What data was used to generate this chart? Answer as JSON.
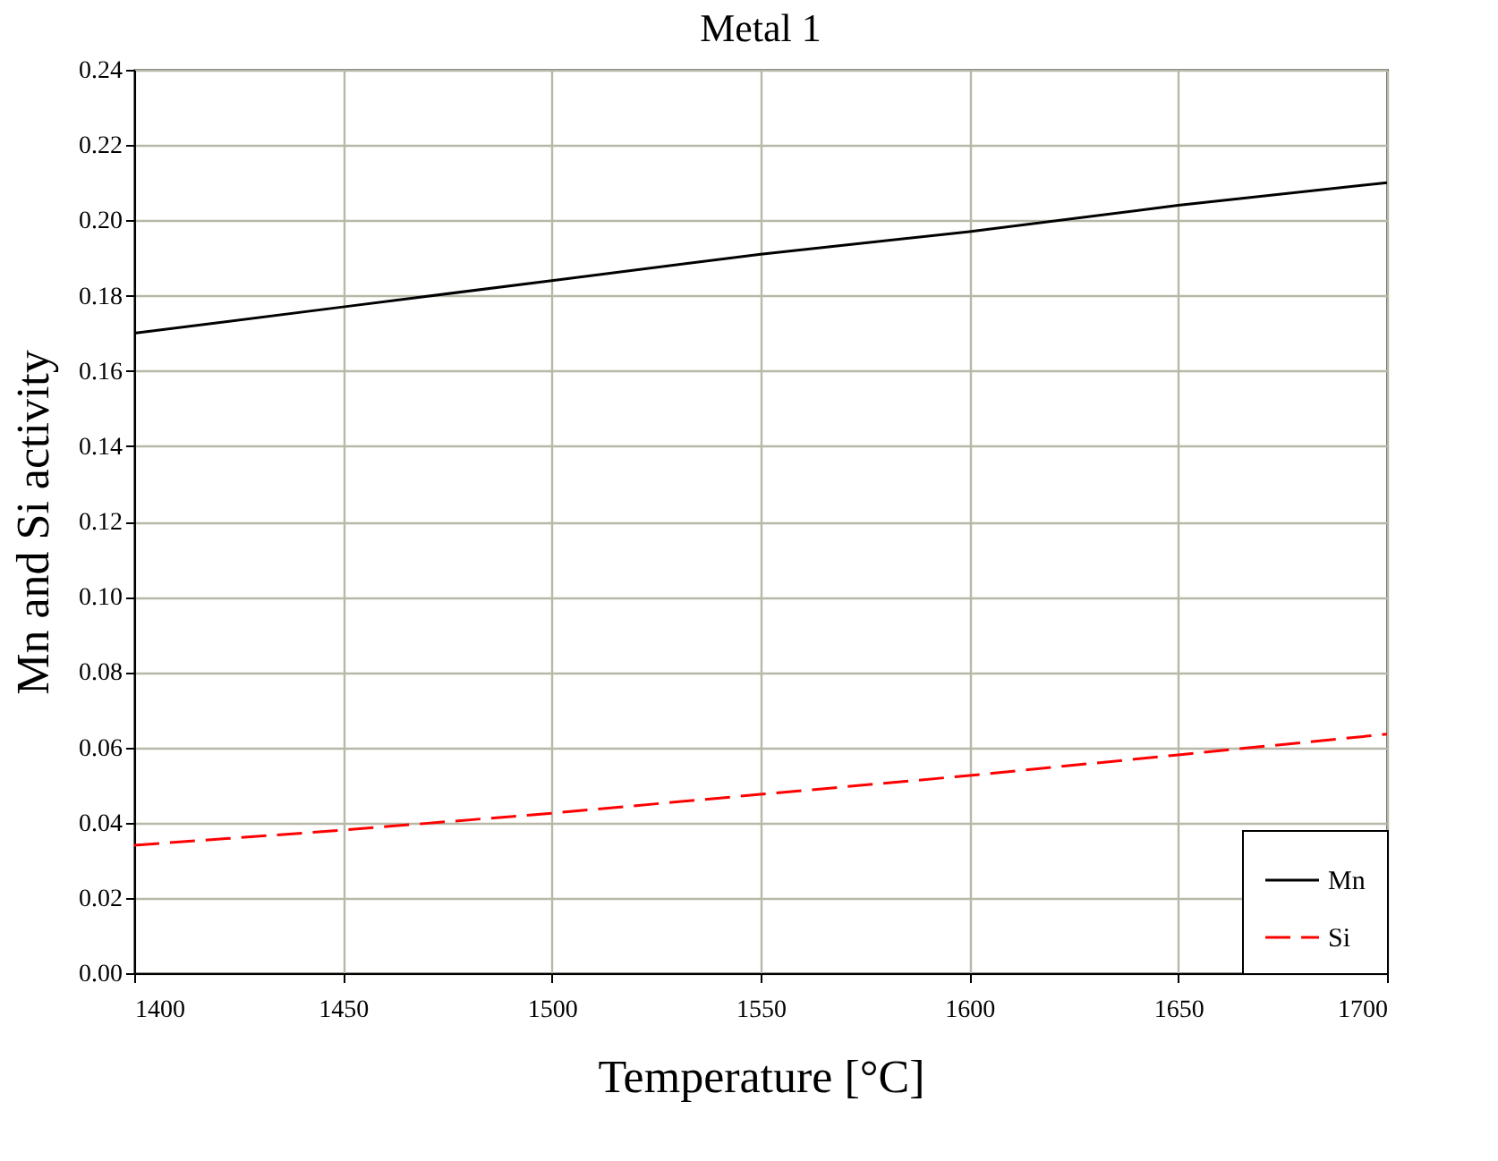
{
  "chart_data": {
    "type": "line",
    "title": "Metal 1",
    "xlabel": "Temperature [°C]",
    "ylabel": "Mn and Si activity",
    "x": [
      1400,
      1450,
      1500,
      1550,
      1600,
      1650,
      1700
    ],
    "series": [
      {
        "name": "Mn",
        "color": "#000000",
        "line_style": "solid",
        "values": [
          0.17,
          0.177,
          0.184,
          0.191,
          0.197,
          0.204,
          0.21
        ]
      },
      {
        "name": "Si",
        "color": "#ff0000",
        "line_style": "dashed",
        "values": [
          0.034,
          0.038,
          0.0425,
          0.0475,
          0.0525,
          0.058,
          0.0635
        ]
      }
    ],
    "xlim": [
      1400,
      1700
    ],
    "xticks": [
      1400,
      1450,
      1500,
      1550,
      1600,
      1650,
      1700
    ],
    "ylim": [
      0,
      0.24
    ],
    "yticks": [
      {
        "value": 0,
        "label": "0.00"
      },
      {
        "value": 0.02,
        "label": "0.02"
      },
      {
        "value": 0.04,
        "label": "0.04"
      },
      {
        "value": 0.06,
        "label": "0.06"
      },
      {
        "value": 0.08,
        "label": "0.08"
      },
      {
        "value": 0.1,
        "label": "0.10"
      },
      {
        "value": 0.12,
        "label": "0.12"
      },
      {
        "value": 0.14,
        "label": "0.14"
      },
      {
        "value": 0.16,
        "label": "0.16"
      },
      {
        "value": 0.18,
        "label": "0.18"
      },
      {
        "value": 0.2,
        "label": "0.20"
      },
      {
        "value": 0.22,
        "label": "0.22"
      },
      {
        "value": 0.24,
        "label": "0.24"
      }
    ],
    "grid": true,
    "legend": "bottom right",
    "marker": "none"
  }
}
